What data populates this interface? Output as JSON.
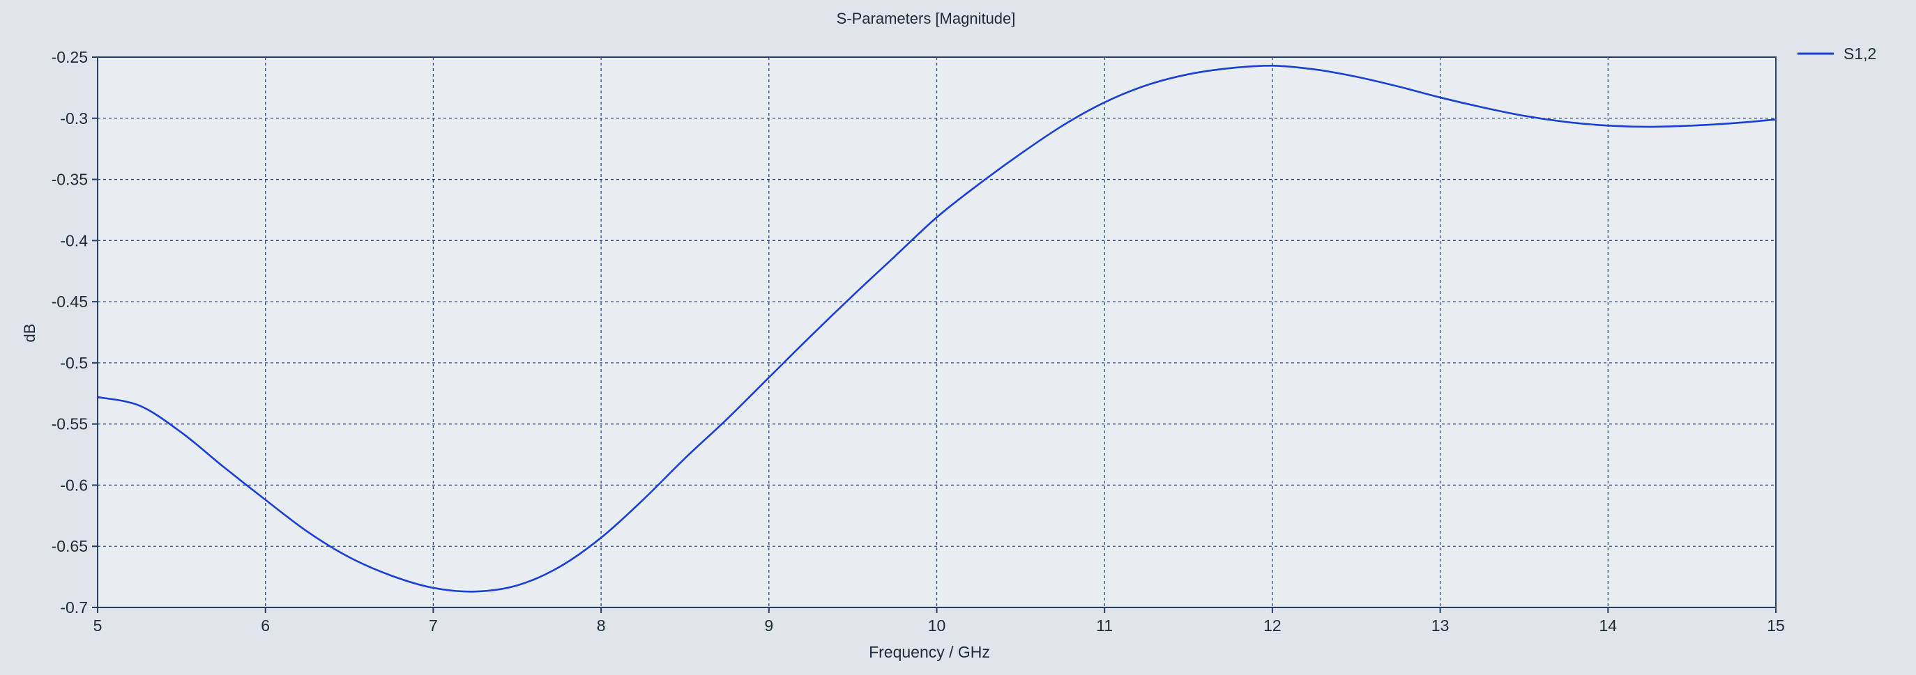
{
  "colors": {
    "background": "#dfe5ea",
    "plot_background": "#e8edf1",
    "grid": "#2f4a78",
    "axis": "#2a3f66",
    "series_line": "#1a3fd6",
    "text": "#1e2a38"
  },
  "chart_data": {
    "type": "line",
    "title": "S-Parameters [Magnitude]",
    "xlabel": "Frequency / GHz",
    "ylabel": "dB",
    "xlim": [
      5,
      15
    ],
    "ylim": [
      -0.7,
      -0.25
    ],
    "x_ticks": [
      5,
      6,
      7,
      8,
      9,
      10,
      11,
      12,
      13,
      14,
      15
    ],
    "x_tick_labels": [
      "5",
      "6",
      "7",
      "8",
      "9",
      "10",
      "11",
      "12",
      "13",
      "14",
      "15"
    ],
    "y_ticks": [
      -0.25,
      -0.3,
      -0.35,
      -0.4,
      -0.45,
      -0.5,
      -0.55,
      -0.6,
      -0.65,
      -0.7
    ],
    "y_tick_labels": [
      "-0.25",
      "-0.3",
      "-0.35",
      "-0.4",
      "-0.45",
      "-0.5",
      "-0.55",
      "-0.6",
      "-0.65",
      "-0.7"
    ],
    "grid": true,
    "grid_style": "dashed",
    "legend_position": "top-right, outside plot",
    "series": [
      {
        "name": "S1,2",
        "color": "#1a3fd6",
        "x": [
          5.0,
          5.25,
          5.5,
          5.75,
          6.0,
          6.25,
          6.5,
          6.75,
          7.0,
          7.25,
          7.5,
          7.75,
          8.0,
          8.25,
          8.5,
          8.75,
          9.0,
          9.25,
          9.5,
          9.75,
          10.0,
          10.25,
          10.5,
          10.75,
          11.0,
          11.25,
          11.5,
          11.75,
          12.0,
          12.25,
          12.5,
          12.75,
          13.0,
          13.25,
          13.5,
          13.75,
          14.0,
          14.25,
          14.5,
          14.75,
          15.0
        ],
        "y": [
          -0.528,
          -0.535,
          -0.557,
          -0.585,
          -0.612,
          -0.638,
          -0.659,
          -0.674,
          -0.684,
          -0.687,
          -0.682,
          -0.667,
          -0.643,
          -0.612,
          -0.578,
          -0.546,
          -0.512,
          -0.478,
          -0.445,
          -0.413,
          -0.381,
          -0.354,
          -0.329,
          -0.306,
          -0.287,
          -0.273,
          -0.264,
          -0.259,
          -0.257,
          -0.26,
          -0.266,
          -0.274,
          -0.283,
          -0.291,
          -0.298,
          -0.303,
          -0.306,
          -0.307,
          -0.306,
          -0.304,
          -0.301
        ]
      }
    ]
  }
}
